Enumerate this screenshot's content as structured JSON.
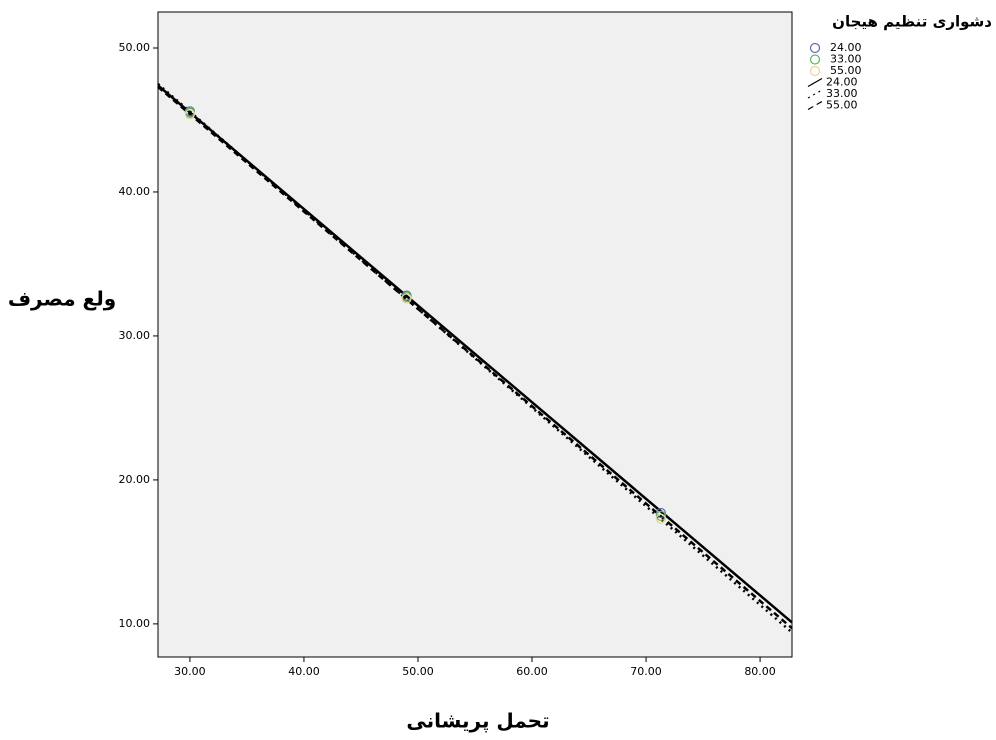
{
  "chart_data": {
    "type": "scatter",
    "xlabel": "تحمل پریشانی",
    "ylabel": "ولع مصرف",
    "legend_title": "دشواری تنظیم هیجان",
    "xlim": [
      27.2,
      82.8
    ],
    "ylim": [
      7.7,
      52.5
    ],
    "xticks": [
      {
        "value": 30,
        "label": "30.00"
      },
      {
        "value": 40,
        "label": "40.00"
      },
      {
        "value": 50,
        "label": "50.00"
      },
      {
        "value": 60,
        "label": "60.00"
      },
      {
        "value": 70,
        "label": "70.00"
      },
      {
        "value": 80,
        "label": "80.00"
      }
    ],
    "yticks": [
      {
        "value": 10,
        "label": "10.00"
      },
      {
        "value": 20,
        "label": "20.00"
      },
      {
        "value": 30,
        "label": "30.00"
      },
      {
        "value": 40,
        "label": "40.00"
      },
      {
        "value": 50,
        "label": "50.00"
      }
    ],
    "legend": "right",
    "series": [
      {
        "name": "24.00",
        "color": "#5a6fa8",
        "x": [
          30,
          49,
          71.3
        ],
        "values": [
          45.6,
          32.8,
          17.7
        ],
        "line_style": "solid",
        "fit": {
          "x": [
            27.2,
            82.8
          ],
          "values": [
            47.4,
            10.1
          ]
        }
      },
      {
        "name": "33.00",
        "color": "#5cb85c",
        "x": [
          30,
          49,
          71.3
        ],
        "values": [
          45.5,
          32.7,
          17.5
        ],
        "line_style": "dotted",
        "fit": {
          "x": [
            27.2,
            82.8
          ],
          "values": [
            47.5,
            9.4
          ]
        }
      },
      {
        "name": "55.00",
        "color": "#e6d59a",
        "x": [
          30,
          49,
          71.3
        ],
        "values": [
          45.4,
          32.6,
          17.3
        ],
        "line_style": "dashed",
        "fit": {
          "x": [
            27.2,
            82.8
          ],
          "values": [
            47.3,
            9.7
          ]
        }
      }
    ]
  }
}
